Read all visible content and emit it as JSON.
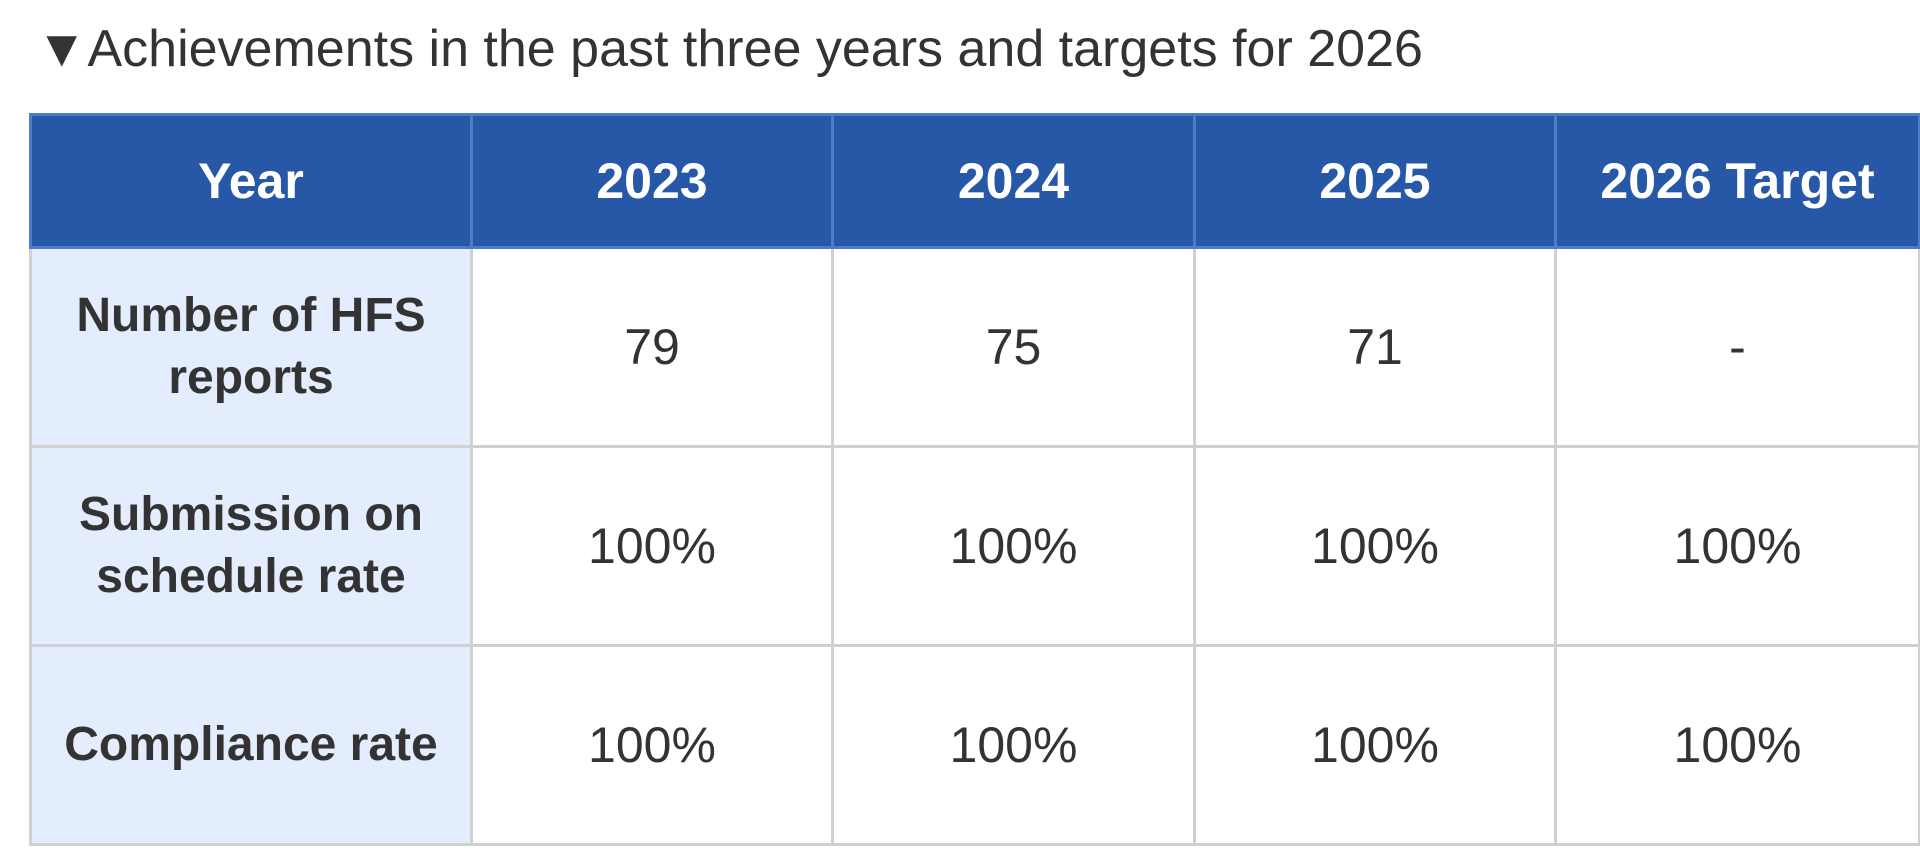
{
  "header": {
    "title": "▼Achievements in the past three years and targets for 2026"
  },
  "table": {
    "columns": [
      "Year",
      "2023",
      "2024",
      "2025",
      "2026 Target"
    ],
    "rows": [
      [
        "Number of HFS reports",
        "79",
        "75",
        "71",
        "-"
      ],
      [
        "Submission on schedule rate",
        "100%",
        "100%",
        "100%",
        "100%"
      ],
      [
        "Compliance rate",
        "100%",
        "100%",
        "100%",
        "100%"
      ]
    ]
  }
}
